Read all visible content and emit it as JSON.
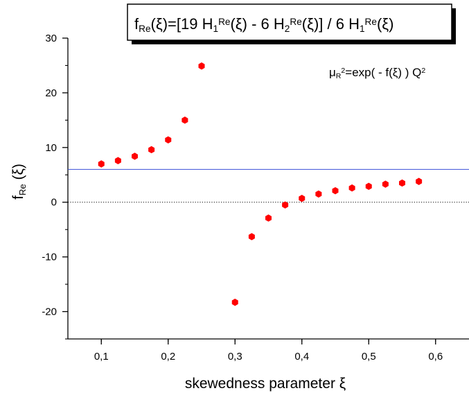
{
  "chart_data": {
    "type": "scatter",
    "title": {
      "segments": [
        {
          "t": "f"
        },
        {
          "t": "Re",
          "s": "sub"
        },
        {
          "t": "(ξ)=[19 H"
        },
        {
          "t": "1",
          "s": "sub"
        },
        {
          "t": "Re",
          "s": "sup"
        },
        {
          "t": "(ξ) - 6 H"
        },
        {
          "t": "2",
          "s": "sub"
        },
        {
          "t": "Re",
          "s": "sup"
        },
        {
          "t": "(ξ)] / 6 H"
        },
        {
          "t": "1",
          "s": "sub"
        },
        {
          "t": "Re",
          "s": "sup"
        },
        {
          "t": "(ξ)"
        }
      ]
    },
    "annotation": {
      "segments": [
        {
          "t": "μ"
        },
        {
          "t": "R",
          "s": "sub"
        },
        {
          "t": "2",
          "s": "sup"
        },
        {
          "t": "=exp( - f(ξ) ) Q"
        },
        {
          "t": "2",
          "s": "sup"
        }
      ]
    },
    "xlabel": "skewedness parameter ξ",
    "ylabel": {
      "segments": [
        {
          "t": "f"
        },
        {
          "t": "Re",
          "s": "sub"
        },
        {
          "t": " (ξ)"
        }
      ]
    },
    "xlim": [
      0.05,
      0.65
    ],
    "ylim": [
      -25,
      30
    ],
    "x_ticks": [
      0.1,
      0.2,
      0.3,
      0.4,
      0.5,
      0.6
    ],
    "x_tick_labels": [
      "0,1",
      "0,2",
      "0,3",
      "0,4",
      "0,5",
      "0,6"
    ],
    "y_ticks": [
      -20,
      -10,
      0,
      10,
      20,
      30
    ],
    "y_tick_labels": [
      "-20",
      "-10",
      "0",
      "10",
      "20",
      "30"
    ],
    "grid": false,
    "series": [
      {
        "marker": "hexagon",
        "color": "#ff0000",
        "points": [
          [
            0.1,
            7.0
          ],
          [
            0.125,
            7.6
          ],
          [
            0.15,
            8.4
          ],
          [
            0.175,
            9.6
          ],
          [
            0.2,
            11.4
          ],
          [
            0.225,
            15.0
          ],
          [
            0.25,
            24.9
          ],
          [
            0.3,
            -18.3
          ],
          [
            0.325,
            -6.3
          ],
          [
            0.35,
            -2.9
          ],
          [
            0.375,
            -0.5
          ],
          [
            0.4,
            0.7
          ],
          [
            0.425,
            1.5
          ],
          [
            0.45,
            2.1
          ],
          [
            0.475,
            2.6
          ],
          [
            0.5,
            2.9
          ],
          [
            0.525,
            3.3
          ],
          [
            0.55,
            3.5
          ],
          [
            0.575,
            3.8
          ]
        ]
      }
    ],
    "reference_lines": [
      {
        "y": 6,
        "color": "#3a4fd8",
        "style": "solid"
      },
      {
        "y": 0,
        "color": "#000000",
        "style": "dotted"
      }
    ]
  }
}
